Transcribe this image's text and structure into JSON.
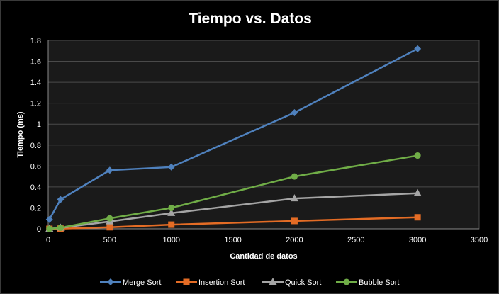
{
  "chart_data": {
    "type": "line",
    "title": "Tiempo vs. Datos",
    "xlabel": "Cantidad  de datos",
    "ylabel": "Tiempo  (ms)",
    "xlim": [
      0,
      3500
    ],
    "ylim": [
      0,
      1.8
    ],
    "xticks": [
      0,
      500,
      1000,
      1500,
      2000,
      2500,
      3000,
      3500
    ],
    "yticks": [
      0,
      0.2,
      0.4,
      0.6,
      0.8,
      1,
      1.2,
      1.4,
      1.6,
      1.8
    ],
    "xtick_labels": [
      "0",
      "500",
      "1000",
      "1500",
      "2000",
      "2500",
      "3000",
      "3500"
    ],
    "ytick_labels": [
      "0",
      "0.2",
      "0.4",
      "0.6",
      "0.8",
      "1",
      "1.2",
      "1.4",
      "1.6",
      "1.8"
    ],
    "grid": true,
    "legend_position": "bottom",
    "series": [
      {
        "name": "Merge Sort",
        "color": "#4f81bd",
        "marker": "diamond",
        "x": [
          10,
          100,
          500,
          1000,
          2000,
          3000
        ],
        "y": [
          0.09,
          0.28,
          0.56,
          0.59,
          1.11,
          1.72
        ]
      },
      {
        "name": "Insertion Sort",
        "color": "#e46c25",
        "marker": "square",
        "x": [
          10,
          100,
          500,
          1000,
          2000,
          3000
        ],
        "y": [
          0.0,
          0.002,
          0.015,
          0.04,
          0.075,
          0.11
        ]
      },
      {
        "name": "Quick Sort",
        "color": "#a5a5a5",
        "marker": "triangle",
        "x": [
          10,
          100,
          500,
          1000,
          2000,
          3000
        ],
        "y": [
          0.0,
          0.01,
          0.07,
          0.15,
          0.29,
          0.34
        ]
      },
      {
        "name": "Bubble Sort",
        "color": "#70ad47",
        "marker": "circle",
        "x": [
          10,
          100,
          500,
          1000,
          2000,
          3000
        ],
        "y": [
          0.0,
          0.01,
          0.1,
          0.2,
          0.5,
          0.7
        ]
      }
    ]
  }
}
